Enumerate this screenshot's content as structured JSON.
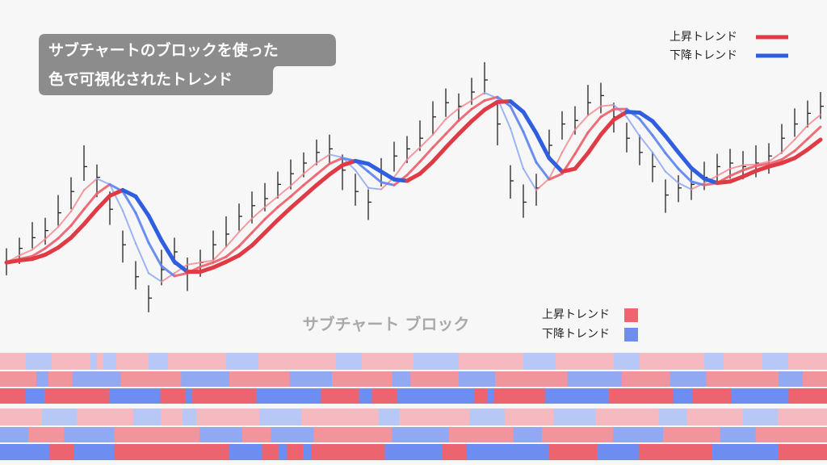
{
  "title": {
    "lines": [
      "サブチャートのブロックを使った",
      "色で可視化されたトレンド"
    ]
  },
  "legend": {
    "items": [
      {
        "label": "上昇トレンド",
        "color": "#e03a45"
      },
      {
        "label": "下降トレンド",
        "color": "#2f5fe0"
      }
    ]
  },
  "chart_data": {
    "type": "ohlc",
    "ylim": [
      -20,
      355
    ],
    "close": [
      65,
      85,
      100,
      110,
      135,
      165,
      200,
      185,
      140,
      90,
      45,
      15,
      55,
      80,
      50,
      65,
      90,
      105,
      130,
      145,
      155,
      175,
      190,
      205,
      220,
      225,
      195,
      165,
      150,
      190,
      215,
      225,
      240,
      270,
      290,
      285,
      305,
      322,
      260,
      180,
      150,
      170,
      230,
      260,
      265,
      290,
      300,
      270,
      240,
      220,
      200,
      160,
      170,
      175,
      185,
      200,
      205,
      200,
      205,
      215,
      240,
      260,
      275,
      285
    ],
    "high": [
      85,
      100,
      122,
      128,
      160,
      185,
      230,
      203,
      165,
      110,
      67,
      33,
      83,
      100,
      72,
      83,
      110,
      130,
      148,
      165,
      177,
      193,
      210,
      220,
      238,
      245,
      217,
      190,
      168,
      212,
      235,
      243,
      265,
      292,
      310,
      303,
      325,
      347,
      290,
      202,
      175,
      190,
      252,
      278,
      285,
      315,
      318,
      290,
      262,
      245,
      220,
      182,
      188,
      195,
      207,
      218,
      225,
      222,
      230,
      233,
      260,
      282,
      293,
      305
    ],
    "low": [
      47,
      63,
      85,
      90,
      117,
      140,
      180,
      157,
      118,
      65,
      27,
      -5,
      33,
      62,
      25,
      45,
      68,
      87,
      110,
      120,
      137,
      155,
      168,
      185,
      202,
      203,
      167,
      145,
      125,
      172,
      193,
      205,
      222,
      245,
      270,
      263,
      287,
      302,
      230,
      155,
      128,
      145,
      212,
      238,
      245,
      272,
      275,
      248,
      220,
      202,
      178,
      135,
      150,
      153,
      167,
      180,
      183,
      182,
      185,
      190,
      218,
      242,
      255,
      267
    ],
    "moving_averages": [
      {
        "up_color": "#f27c86",
        "down_color": "#7f9ef2",
        "values": [
          65,
          75,
          83,
          98,
          115,
          137,
          167,
          183,
          175,
          138,
          92,
          50,
          38,
          50,
          62,
          65,
          68,
          87,
          108,
          127,
          143,
          158,
          173,
          190,
          205,
          217,
          213,
          195,
          170,
          168,
          185,
          210,
          227,
          245,
          267,
          282,
          293,
          304,
          296,
          254,
          197,
          167,
          183,
          220,
          252,
          272,
          285,
          287,
          270,
          243,
          220,
          193,
          177,
          168,
          177,
          187,
          197,
          202,
          203,
          207,
          220,
          238,
          258,
          273
        ]
      },
      {
        "up_color": "#ee5f6b",
        "down_color": "#5c84f0",
        "values": [
          65,
          70,
          74,
          85,
          99,
          117,
          140,
          162,
          175,
          165,
          135,
          93,
          60,
          46,
          50,
          59,
          65,
          73,
          88,
          107,
          126,
          143,
          158,
          174,
          189,
          204,
          212,
          208,
          193,
          178,
          174,
          188,
          207,
          227,
          246,
          265,
          281,
          293,
          298,
          285,
          249,
          206,
          182,
          190,
          218,
          248,
          270,
          281,
          281,
          267,
          244,
          219,
          197,
          179,
          174,
          177,
          187,
          195,
          201,
          204,
          210,
          222,
          239,
          256
        ]
      },
      {
        "up_color": "#e03a45",
        "down_color": "#2f5fe0",
        "values": [
          65,
          68,
          70,
          76,
          86,
          100,
          119,
          140,
          159,
          167,
          158,
          131,
          96,
          66,
          52,
          52,
          58,
          66,
          75,
          89,
          107,
          125,
          142,
          158,
          174,
          189,
          202,
          208,
          204,
          193,
          182,
          180,
          190,
          207,
          227,
          246,
          264,
          280,
          291,
          292,
          277,
          247,
          212,
          193,
          197,
          219,
          245,
          266,
          277,
          276,
          264,
          243,
          220,
          198,
          183,
          177,
          179,
          186,
          194,
          200,
          205,
          212,
          224,
          238
        ]
      }
    ],
    "blocks": {
      "title": "サブチャート ブロック",
      "legend": [
        {
          "label": "上昇トレンド",
          "color": "#f0636f"
        },
        {
          "label": "下降トレンド",
          "color": "#6d8ef0"
        }
      ],
      "colors": {
        "light": {
          "up": "#f7b9c0",
          "down": "#b8c8f6"
        },
        "medium": {
          "up": "#f2949c",
          "down": "#91a9f2"
        },
        "dark": {
          "up": "#ec6470",
          "down": "#6d8ef0"
        }
      },
      "rows": [
        {
          "shade": "light",
          "runs": [
            [
              "up",
              4
            ],
            [
              "down",
              4
            ],
            [
              "up",
              6
            ],
            [
              "down",
              1
            ],
            [
              "up",
              1
            ],
            [
              "down",
              2
            ],
            [
              "up",
              5
            ],
            [
              "down",
              3
            ],
            [
              "up",
              9
            ],
            [
              "down",
              5
            ],
            [
              "up",
              12
            ],
            [
              "down",
              4
            ],
            [
              "up",
              8
            ],
            [
              "down",
              7
            ],
            [
              "up",
              10
            ],
            [
              "down",
              5
            ],
            [
              "up",
              9
            ],
            [
              "down",
              4
            ],
            [
              "up",
              10
            ],
            [
              "down",
              3
            ],
            [
              "up",
              6
            ],
            [
              "down",
              4
            ],
            [
              "up",
              6
            ]
          ]
        },
        {
          "shade": "medium",
          "runs": [
            [
              "up",
              6
            ],
            [
              "down",
              2
            ],
            [
              "up",
              4
            ],
            [
              "down",
              8
            ],
            [
              "up",
              10
            ],
            [
              "down",
              8
            ],
            [
              "up",
              10
            ],
            [
              "down",
              7
            ],
            [
              "up",
              10
            ],
            [
              "down",
              3
            ],
            [
              "up",
              8
            ],
            [
              "down",
              6
            ],
            [
              "up",
              12
            ],
            [
              "down",
              9
            ],
            [
              "up",
              8
            ],
            [
              "down",
              6
            ],
            [
              "up",
              12
            ],
            [
              "down",
              4
            ],
            [
              "up",
              4
            ]
          ]
        },
        {
          "shade": "dark",
          "runs": [
            [
              "up",
              4
            ],
            [
              "down",
              3
            ],
            [
              "up",
              10
            ],
            [
              "down",
              8
            ],
            [
              "up",
              4
            ],
            [
              "down",
              1
            ],
            [
              "up",
              10
            ],
            [
              "down",
              10
            ],
            [
              "up",
              6
            ],
            [
              "down",
              2
            ],
            [
              "up",
              4
            ],
            [
              "down",
              12
            ],
            [
              "up",
              2
            ],
            [
              "down",
              1
            ],
            [
              "up",
              8
            ],
            [
              "down",
              10
            ],
            [
              "up",
              10
            ],
            [
              "down",
              3
            ],
            [
              "up",
              6
            ],
            [
              "down",
              9
            ],
            [
              "up",
              6
            ]
          ]
        },
        {
          "shade": "light",
          "runs": [
            [
              "up",
              6
            ],
            [
              "down",
              5
            ],
            [
              "up",
              8
            ],
            [
              "down",
              4
            ],
            [
              "up",
              3
            ],
            [
              "down",
              2
            ],
            [
              "up",
              9
            ],
            [
              "down",
              6
            ],
            [
              "up",
              11
            ],
            [
              "down",
              3
            ],
            [
              "up",
              10
            ],
            [
              "down",
              5
            ],
            [
              "up",
              7
            ],
            [
              "down",
              6
            ],
            [
              "up",
              9
            ],
            [
              "down",
              4
            ],
            [
              "up",
              8
            ],
            [
              "down",
              5
            ],
            [
              "up",
              7
            ]
          ]
        },
        {
          "shade": "medium",
          "runs": [
            [
              "down",
              4
            ],
            [
              "up",
              5
            ],
            [
              "down",
              7
            ],
            [
              "up",
              12
            ],
            [
              "down",
              6
            ],
            [
              "up",
              4
            ],
            [
              "down",
              6
            ],
            [
              "up",
              11
            ],
            [
              "down",
              8
            ],
            [
              "up",
              9
            ],
            [
              "down",
              4
            ],
            [
              "up",
              10
            ],
            [
              "down",
              7
            ],
            [
              "up",
              8
            ],
            [
              "down",
              5
            ],
            [
              "up",
              10
            ]
          ]
        },
        {
          "shade": "dark",
          "runs": [
            [
              "down",
              6
            ],
            [
              "up",
              3
            ],
            [
              "down",
              5
            ],
            [
              "up",
              14
            ],
            [
              "down",
              4
            ],
            [
              "up",
              2
            ],
            [
              "down",
              1
            ],
            [
              "up",
              2
            ],
            [
              "down",
              1
            ],
            [
              "up",
              9
            ],
            [
              "down",
              7
            ],
            [
              "up",
              3
            ],
            [
              "down",
              10
            ],
            [
              "up",
              6
            ],
            [
              "down",
              5
            ],
            [
              "up",
              9
            ],
            [
              "down",
              8
            ],
            [
              "up",
              6
            ]
          ]
        }
      ]
    }
  }
}
